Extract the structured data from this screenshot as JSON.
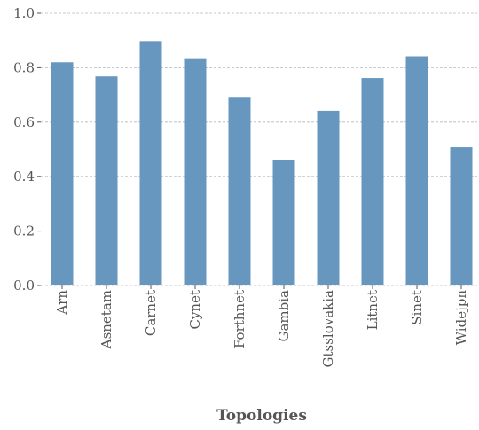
{
  "chart_data": {
    "type": "bar",
    "title": "",
    "xlabel": "Topologies",
    "ylabel": "",
    "categories": [
      "Arn",
      "Asnetam",
      "Carnet",
      "Cynet",
      "Forthnet",
      "Gambia",
      "Gtsslovakia",
      "Litnet",
      "Sinet",
      "Widejpn"
    ],
    "values": [
      0.82,
      0.768,
      0.898,
      0.835,
      0.693,
      0.46,
      0.642,
      0.762,
      0.842,
      0.508
    ],
    "ylim": [
      0,
      1.0
    ],
    "yticks": [
      0.0,
      0.2,
      0.4,
      0.6,
      0.8,
      1.0
    ],
    "ytick_labels": [
      "0.0",
      "0.2",
      "0.4",
      "0.6",
      "0.8",
      "1.0"
    ],
    "grid": true,
    "legend": "none",
    "bar_color": "#6797bf",
    "grid_color": "#b8b8b8",
    "text_color": "#555555"
  }
}
